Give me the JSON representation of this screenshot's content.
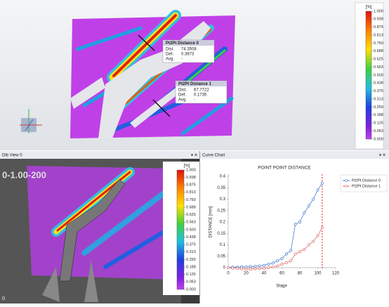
{
  "top_view": {
    "colorbar": {
      "unit": "[%]",
      "ticks": [
        {
          "value": 1,
          "label": "1.000"
        },
        {
          "value": 0.938,
          "label": "0.938"
        },
        {
          "value": 0.875,
          "label": "0.875"
        },
        {
          "value": 0.813,
          "label": "0.813"
        },
        {
          "value": 0.75,
          "label": "0.750"
        },
        {
          "value": 0.688,
          "label": "0.688"
        },
        {
          "value": 0.625,
          "label": "0.625"
        },
        {
          "value": 0.563,
          "label": "0.563"
        },
        {
          "value": 0.5,
          "label": "0.500"
        },
        {
          "value": 0.438,
          "label": "0.438"
        },
        {
          "value": 0.375,
          "label": "0.375"
        },
        {
          "value": 0.313,
          "label": "0.313"
        },
        {
          "value": 0.25,
          "label": "0.250"
        },
        {
          "value": 0.188,
          "label": "0.188"
        },
        {
          "value": 0.125,
          "label": "0.125"
        },
        {
          "value": 0.063,
          "label": "0.063"
        },
        {
          "value": 0,
          "label": "0.000"
        }
      ]
    },
    "callouts": [
      {
        "title": "Pt2Pt Distance 0",
        "rows": [
          [
            "Dist.",
            74.3508
          ],
          [
            "Def.",
            0.3673
          ],
          [
            "Avg.",
            "-"
          ]
        ]
      },
      {
        "title": "Pt2Pt Distance 1",
        "rows": [
          [
            "Dist.",
            67.7722
          ],
          [
            "Def.",
            0.1735
          ],
          [
            "Avg.",
            "-"
          ]
        ]
      }
    ]
  },
  "dib_view": {
    "title": "Dib View 0",
    "overlay_label": "0-1.00-200",
    "frame": "0",
    "colorbar": {
      "unit": "[%]",
      "ticks": [
        {
          "value": 1,
          "label": "1.000"
        },
        {
          "value": 0.938,
          "label": "0.938"
        },
        {
          "value": 0.875,
          "label": "0.875"
        },
        {
          "value": 0.813,
          "label": "0.813"
        },
        {
          "value": 0.75,
          "label": "0.750"
        },
        {
          "value": 0.688,
          "label": "0.688"
        },
        {
          "value": 0.625,
          "label": "0.625"
        },
        {
          "value": 0.563,
          "label": "0.563"
        },
        {
          "value": 0.5,
          "label": "0.500"
        },
        {
          "value": 0.438,
          "label": "0.438"
        },
        {
          "value": 0.375,
          "label": "0.375"
        },
        {
          "value": 0.313,
          "label": "0.313"
        },
        {
          "value": 0.25,
          "label": "0.250"
        },
        {
          "value": 0.188,
          "label": "0.188"
        },
        {
          "value": 0.125,
          "label": "0.125"
        },
        {
          "value": 0.063,
          "label": "0.063"
        },
        {
          "value": 0,
          "label": "0.000"
        }
      ]
    }
  },
  "curve_chart": {
    "panel_title": "Curve Chart",
    "type": "line",
    "title": "POINT POINT DISTANCE",
    "x_label": "Stage",
    "y_label": "DISTANCE [mm]",
    "x": [
      0,
      5,
      10,
      15,
      20,
      25,
      30,
      35,
      40,
      45,
      50,
      55,
      60,
      65,
      70,
      75,
      80,
      85,
      90,
      95,
      100,
      105
    ],
    "series": [
      {
        "name": "Pt2Pt Distance 0",
        "color": "#4a7fd4",
        "values": [
          0,
          0.003,
          0.002,
          0.004,
          0.003,
          0.005,
          0.006,
          0.008,
          0.01,
          0.015,
          0.02,
          0.03,
          0.04,
          0.06,
          0.075,
          0.19,
          0.2,
          0.24,
          0.27,
          0.3,
          0.34,
          0.37
        ]
      },
      {
        "name": "Pt2Pt Distance 1",
        "color": "#e07070",
        "values": [
          0,
          -0.002,
          -0.003,
          -0.005,
          -0.006,
          -0.006,
          -0.005,
          -0.004,
          -0.003,
          0,
          0.003,
          0.008,
          0.015,
          0.022,
          0.03,
          0.06,
          0.07,
          0.08,
          0.1,
          0.115,
          0.14,
          0.175
        ]
      }
    ],
    "current_stage": 105,
    "current_stage_color": "#e02020",
    "xlim": [
      0,
      120
    ],
    "xticks": [
      0,
      20,
      40,
      60,
      80,
      100,
      120
    ],
    "ylim": [
      0,
      0.4
    ],
    "yticks": [
      0,
      0.05,
      0.1,
      0.15,
      0.2,
      0.25,
      0.3,
      0.35,
      0.4
    ],
    "legend": "right"
  }
}
